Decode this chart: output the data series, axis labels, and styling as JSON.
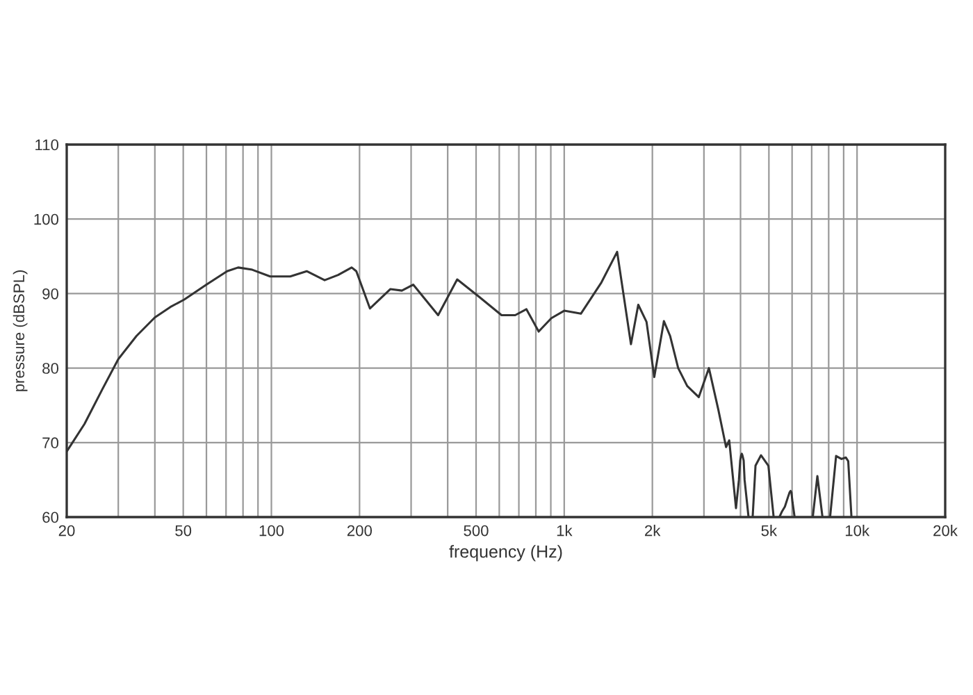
{
  "chart_data": {
    "type": "line",
    "xlabel": "frequency (Hz)",
    "ylabel": "pressure (dBSPL)",
    "log": "x",
    "grid": true,
    "line_style": "solid",
    "marker": "none",
    "xlim": [
      20,
      20000
    ],
    "ylim": [
      60,
      110
    ],
    "xticks": [
      20,
      {
        "value": 30,
        "label": null
      },
      {
        "value": 40,
        "label": null
      },
      50,
      {
        "value": 60,
        "label": null
      },
      {
        "value": 70,
        "label": null
      },
      {
        "value": 80,
        "label": null
      },
      {
        "value": 90,
        "label": null
      },
      100,
      200,
      {
        "value": 300,
        "label": null
      },
      {
        "value": 400,
        "label": null
      },
      500,
      {
        "value": 600,
        "label": null
      },
      {
        "value": 700,
        "label": null
      },
      {
        "value": 800,
        "label": null
      },
      {
        "value": 900,
        "label": null
      },
      {
        "value": 1000,
        "label": "1k"
      },
      {
        "value": 2000,
        "label": "2k"
      },
      {
        "value": 3000,
        "label": null
      },
      {
        "value": 4000,
        "label": null
      },
      {
        "value": 5000,
        "label": "5k"
      },
      {
        "value": 6000,
        "label": null
      },
      {
        "value": 7000,
        "label": null
      },
      {
        "value": 8000,
        "label": null
      },
      {
        "value": 9000,
        "label": null
      },
      {
        "value": 10000,
        "label": "10k"
      },
      {
        "value": 20000,
        "label": "20k"
      }
    ],
    "yticks": [
      60,
      70,
      80,
      90,
      100,
      110
    ],
    "series": [
      {
        "color": "#333333",
        "x": [
          20,
          23,
          26.5,
          30,
          34.6,
          40,
          45.2,
          50.4,
          60,
          70.6,
          77,
          86,
          99,
          116,
          132,
          152,
          169,
          188,
          195,
          217,
          255,
          279,
          305,
          371,
          431,
          511,
          611,
          680,
          743,
          818,
          904,
          1000,
          1140,
          1340,
          1516,
          1690,
          1790,
          1910,
          2030,
          2190,
          2300,
          2450,
          2630,
          2880,
          3120,
          3360,
          3570,
          3660,
          3860,
          3950,
          3990,
          4020,
          4040,
          4060,
          4100,
          4130,
          4260,
          4350,
          4400,
          4500,
          4700,
          4980,
          5190,
          5330,
          5430,
          5550,
          5670,
          5800,
          5880,
          5930,
          5970,
          6020,
          6120,
          6600,
          7060,
          7320,
          7620,
          7850,
          8090,
          8480,
          8850,
          9160,
          9330,
          9570
        ],
        "values": [
          68.8,
          72.5,
          77.2,
          81.2,
          84.3,
          86.8,
          88.2,
          89.2,
          91.2,
          93.0,
          93.5,
          93.2,
          92.3,
          92.3,
          93.0,
          91.8,
          92.5,
          93.5,
          93.0,
          88.0,
          90.6,
          90.4,
          91.2,
          87.1,
          91.9,
          89.6,
          87.1,
          87.1,
          87.9,
          84.9,
          86.7,
          87.7,
          87.3,
          91.5,
          95.6,
          83.2,
          88.5,
          86.2,
          78.8,
          86.3,
          84.3,
          80.0,
          77.6,
          76.1,
          80.0,
          74.4,
          69.4,
          70.3,
          61.2,
          65.0,
          67.6,
          68.3,
          68.5,
          68.3,
          67.6,
          65.0,
          60,
          null,
          60,
          66.9,
          68.3,
          66.9,
          60,
          null,
          60,
          60.8,
          61.4,
          62.6,
          63.3,
          63.5,
          63.3,
          62.0,
          60,
          null,
          60,
          65.5,
          60,
          null,
          60,
          68.2,
          67.8,
          68.0,
          67.5,
          60
        ]
      }
    ]
  }
}
